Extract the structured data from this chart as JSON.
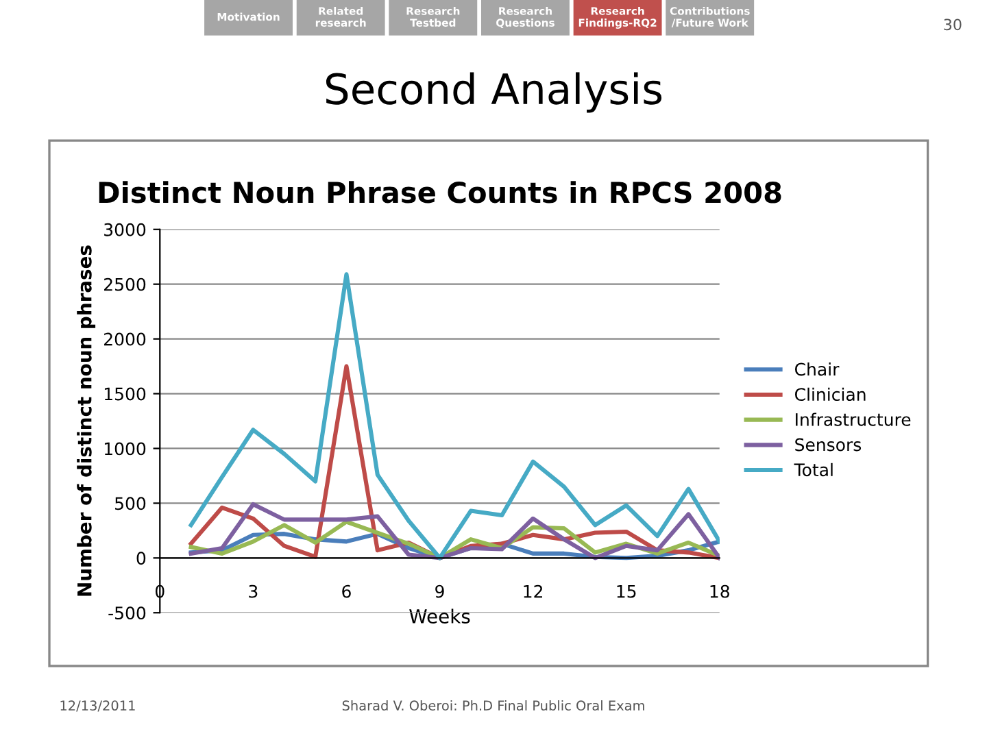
{
  "chart_data": {
    "type": "line",
    "title": "Distinct Noun Phrase Counts in RPCS 2008",
    "xlabel": "Weeks",
    "ylabel": "Number of distinct noun phrases",
    "annotations": [
      "Motivation",
      "Related\nresearch",
      "Research\nTestbed",
      "Research\nQuestions",
      "Research\nFindings-RQ2",
      "Contributions\n/Future Work",
      "Second Analysis",
      "30",
      "12/13/2011",
      "Sharad V. Oberoi: Ph.D Final Public Oral Exam"
    ],
    "x": [
      1,
      2,
      3,
      4,
      5,
      6,
      7,
      8,
      9,
      10,
      11,
      12,
      13,
      14,
      15,
      16,
      17,
      18
    ],
    "series": [
      {
        "name": "Chair",
        "color": "#4a7ebb",
        "values": [
          50,
          70,
          210,
          220,
          170,
          150,
          220,
          90,
          0,
          90,
          130,
          40,
          40,
          10,
          0,
          20,
          70,
          150
        ]
      },
      {
        "name": "Clinician",
        "color": "#be4b48",
        "values": [
          130,
          460,
          360,
          110,
          10,
          1750,
          70,
          140,
          0,
          110,
          130,
          210,
          170,
          230,
          240,
          70,
          50,
          0
        ]
      },
      {
        "name": "Infrastructure",
        "color": "#98b954",
        "values": [
          100,
          40,
          150,
          300,
          140,
          330,
          230,
          130,
          0,
          170,
          90,
          280,
          270,
          50,
          130,
          40,
          140,
          20
        ]
      },
      {
        "name": "Sensors",
        "color": "#7d60a0",
        "values": [
          40,
          90,
          490,
          350,
          350,
          350,
          380,
          30,
          0,
          90,
          80,
          360,
          170,
          0,
          110,
          70,
          400,
          0
        ]
      },
      {
        "name": "Total",
        "color": "#46aac5",
        "values": [
          300,
          740,
          1170,
          950,
          700,
          2590,
          760,
          340,
          0,
          430,
          390,
          880,
          650,
          300,
          480,
          200,
          630,
          150
        ]
      }
    ],
    "xlim": [
      0,
      18
    ],
    "xticks": [
      0,
      3,
      6,
      9,
      12,
      15,
      18
    ],
    "ylim": [
      -500,
      3000
    ],
    "yticks": [
      -500,
      0,
      500,
      1000,
      1500,
      2000,
      2500,
      3000
    ],
    "grid": "y",
    "legend": "right",
    "marker": "none",
    "line_style": "solid"
  }
}
